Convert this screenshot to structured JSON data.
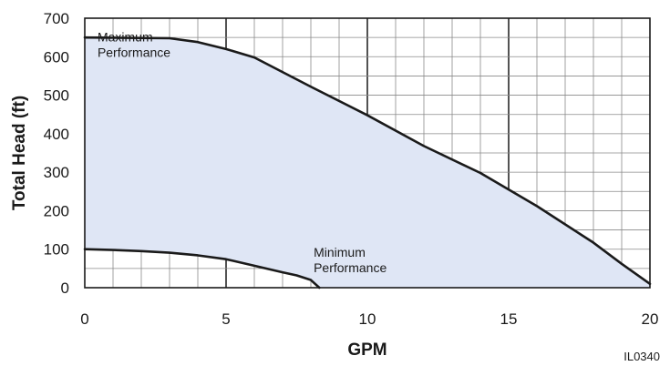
{
  "chart_data": {
    "type": "area",
    "xlabel": "GPM",
    "ylabel": "Total Head (ft)",
    "xlim": [
      0,
      20
    ],
    "ylim": [
      0,
      700
    ],
    "x_ticks": [
      0,
      5,
      10,
      15,
      20
    ],
    "y_ticks": [
      0,
      100,
      200,
      300,
      400,
      500,
      600,
      700
    ],
    "grid": true,
    "series": [
      {
        "name": "Maximum Performance",
        "x": [
          0,
          3,
          4,
          5,
          6,
          8,
          10,
          12,
          14,
          16,
          18,
          19,
          20
        ],
        "y": [
          650,
          648,
          638,
          620,
          598,
          522,
          448,
          368,
          298,
          212,
          117,
          62,
          10
        ]
      },
      {
        "name": "Minimum Performance",
        "x": [
          0,
          1,
          2,
          3,
          4,
          5,
          6,
          7,
          7.5,
          8,
          8.3
        ],
        "y": [
          100,
          98,
          95,
          91,
          84,
          74,
          57,
          40,
          32,
          20,
          0
        ]
      }
    ],
    "annotations": [
      {
        "text_lines": [
          "Maximum",
          "Performance"
        ],
        "x": 0.45,
        "y": 640
      },
      {
        "text_lines": [
          "Minimum",
          "Performance"
        ],
        "x": 8.1,
        "y": 80
      }
    ],
    "fill_color": "#dfe6f5",
    "line_color": "#1a1a1a",
    "grid_color": "#8a8a8a",
    "figure_code": "IL0340"
  }
}
